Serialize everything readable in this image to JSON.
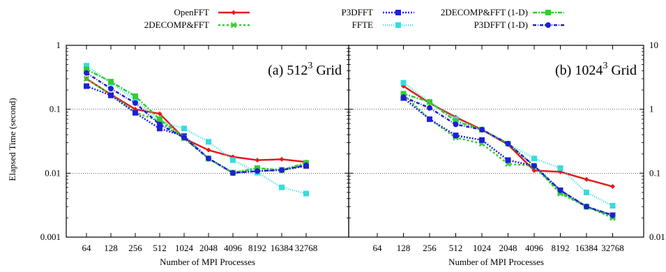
{
  "legend": [
    {
      "label": "OpenFFT",
      "color": "#e41a1c",
      "dash": "",
      "marker": "diamond"
    },
    {
      "label": "2DECOMP&FFT",
      "color": "#33cc33",
      "dash": "3,3",
      "marker": "x"
    },
    {
      "label": "P3DFFT",
      "color": "#1f1fd6",
      "dash": "2,2",
      "marker": "square"
    },
    {
      "label": "FFTE",
      "color": "#33dddd",
      "dash": "1,2",
      "marker": "square"
    },
    {
      "label": "2DECOMP&FFT (1-D)",
      "color": "#33cc33",
      "dash": "6,2,2,2",
      "marker": "square"
    },
    {
      "label": "P3DFFT   (1-D)",
      "color": "#1f1fd6",
      "dash": "5,2,1,2",
      "marker": "circle"
    }
  ],
  "chart_data": [
    {
      "type": "line",
      "title": "(a) 512",
      "title_sup": "3",
      "title_suffix": " Grid",
      "xlabel": "Number of MPI Processes",
      "ylabel": "Elapsed Time (second)",
      "x_categories": [
        "64",
        "128",
        "256",
        "512",
        "1024",
        "2048",
        "4096",
        "8192",
        "16384",
        "32768"
      ],
      "yscale": "log",
      "ylim": [
        0.001,
        1
      ],
      "y_ticks": [
        "0.001",
        "0.01",
        "0.1",
        "1"
      ],
      "grid": "horizontal",
      "series": [
        {
          "name": "OpenFFT",
          "values": [
            0.3,
            0.17,
            0.1,
            0.085,
            0.035,
            0.023,
            0.018,
            0.016,
            0.0165,
            0.015
          ]
        },
        {
          "name": "2DECOMP&FFT",
          "values": [
            0.3,
            0.17,
            0.09,
            0.065,
            0.035,
            0.017,
            0.0101,
            0.012,
            0.0112,
            0.014
          ]
        },
        {
          "name": "P3DFFT",
          "values": [
            0.23,
            0.165,
            0.088,
            0.05,
            0.038,
            0.017,
            0.0101,
            0.0108,
            0.0112,
            0.013
          ]
        },
        {
          "name": "FFTE",
          "values": [
            0.48,
            0.26,
            0.14,
            0.065,
            0.05,
            0.031,
            0.016,
            0.0102,
            0.006,
            0.0048
          ]
        },
        {
          "name": "2DECOMP&FFT (1-D)",
          "values": [
            0.42,
            0.27,
            0.16,
            0.07,
            0.036,
            0.017,
            0.0102,
            0.012,
            0.0112,
            0.0145
          ]
        },
        {
          "name": "P3DFFT   (1-D)",
          "values": [
            0.37,
            0.21,
            0.125,
            0.058,
            0.036,
            0.017,
            0.0101,
            0.0108,
            0.0112,
            0.0133
          ]
        }
      ]
    },
    {
      "type": "line",
      "title": "(b) 1024",
      "title_sup": "3",
      "title_suffix": " Grid",
      "xlabel": "Number of MPI Processes",
      "ylabel": "",
      "x_categories": [
        "64",
        "128",
        "256",
        "512",
        "1024",
        "2048",
        "4096",
        "8192",
        "16384",
        "32768"
      ],
      "yscale": "log",
      "ylim": [
        0.01,
        10
      ],
      "y_ticks": [
        "0.01",
        "0.1",
        "1",
        "10"
      ],
      "grid": "horizontal",
      "series": [
        {
          "name": "OpenFFT",
          "values": [
            null,
            2.3,
            1.25,
            0.75,
            0.48,
            0.28,
            0.11,
            0.105,
            0.08,
            0.062
          ]
        },
        {
          "name": "2DECOMP&FFT",
          "values": [
            null,
            1.7,
            0.7,
            0.36,
            0.29,
            0.14,
            0.13,
            0.048,
            0.03,
            0.02
          ]
        },
        {
          "name": "P3DFFT",
          "values": [
            null,
            1.5,
            0.7,
            0.39,
            0.33,
            0.16,
            0.13,
            0.054,
            0.03,
            0.022
          ]
        },
        {
          "name": "FFTE",
          "values": [
            null,
            2.6,
            1.3,
            0.7,
            0.48,
            0.29,
            0.17,
            0.12,
            0.05,
            0.031
          ]
        },
        {
          "name": "2DECOMP&FFT (1-D)",
          "values": [
            null,
            1.75,
            1.3,
            0.65,
            0.48,
            0.29,
            0.13,
            0.05,
            0.03,
            0.021
          ]
        },
        {
          "name": "P3DFFT   (1-D)",
          "values": [
            null,
            1.55,
            1.05,
            0.58,
            0.48,
            0.29,
            0.13,
            0.054,
            0.03,
            0.022
          ]
        }
      ]
    }
  ]
}
